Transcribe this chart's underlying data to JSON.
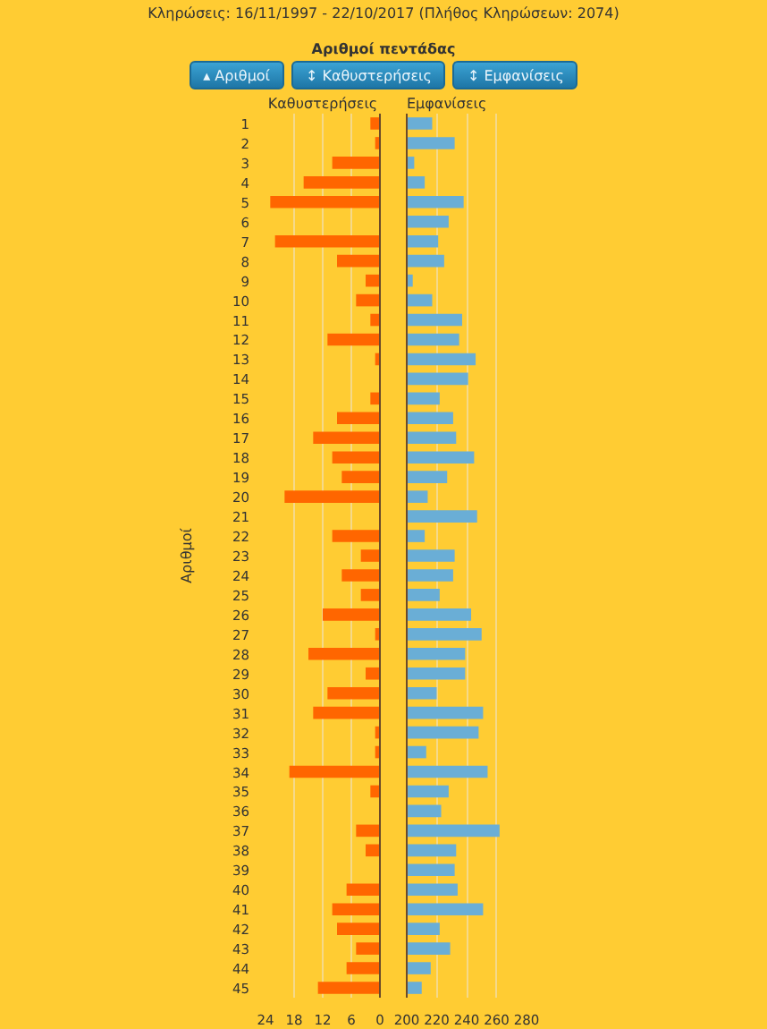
{
  "chart_data": [
    {
      "type": "other",
      "title": "Αριθμοί πεντάδας",
      "annotations": [
        "Κληρώσεις: 16/11/1997 - 22/10/2017 (Πλήθος Κληρώσεων: 2074)",
        "▴ Αριθμοί",
        "↕ Καθυστερήσεις",
        "↕ Εμφανίσεις"
      ]
    },
    {
      "type": "bar",
      "orientation": "horizontal",
      "title": "Καθυστερήσεις",
      "ylabel": "Αριθμοί",
      "categories": [
        "1",
        "2",
        "3",
        "4",
        "5",
        "6",
        "7",
        "8",
        "9",
        "10",
        "11",
        "12",
        "13",
        "14",
        "15",
        "16",
        "17",
        "18",
        "19",
        "20",
        "21",
        "22",
        "23",
        "24",
        "25",
        "26",
        "27",
        "28",
        "29",
        "30",
        "31",
        "32",
        "33",
        "34",
        "35",
        "36",
        "37",
        "38",
        "39",
        "40",
        "41",
        "42",
        "43",
        "44",
        "45"
      ],
      "series": [
        {
          "color": "#ff6600",
          "values": [
            2,
            1,
            10,
            16,
            23,
            0,
            22,
            9,
            3,
            5,
            2,
            11,
            1,
            0,
            2,
            9,
            14,
            10,
            8,
            20,
            0,
            10,
            4,
            8,
            4,
            12,
            1,
            15,
            3,
            11,
            14,
            1,
            1,
            19,
            2,
            0,
            5,
            3,
            0,
            7,
            10,
            9,
            5,
            7,
            13
          ]
        }
      ],
      "xlim": [
        24,
        0
      ],
      "xticks": [
        24,
        18,
        12,
        6,
        0
      ],
      "grid": "x"
    },
    {
      "type": "bar",
      "orientation": "horizontal",
      "title": "Εμφανίσεις",
      "categories": [
        "1",
        "2",
        "3",
        "4",
        "5",
        "6",
        "7",
        "8",
        "9",
        "10",
        "11",
        "12",
        "13",
        "14",
        "15",
        "16",
        "17",
        "18",
        "19",
        "20",
        "21",
        "22",
        "23",
        "24",
        "25",
        "26",
        "27",
        "28",
        "29",
        "30",
        "31",
        "32",
        "33",
        "34",
        "35",
        "36",
        "37",
        "38",
        "39",
        "40",
        "41",
        "42",
        "43",
        "44",
        "45"
      ],
      "series": [
        {
          "color": "#6aaed6",
          "values": [
            217,
            232,
            205,
            212,
            238,
            228,
            221,
            225,
            204,
            217,
            237,
            235,
            246,
            241,
            222,
            231,
            233,
            245,
            227,
            214,
            247,
            212,
            232,
            231,
            222,
            243,
            250,
            239,
            239,
            220,
            251,
            248,
            213,
            254,
            228,
            223,
            262,
            233,
            232,
            234,
            251,
            222,
            229,
            216,
            210
          ]
        }
      ],
      "xlim": [
        200,
        280
      ],
      "xticks": [
        200,
        220,
        240,
        260,
        280
      ],
      "grid": "x",
      "tick_labels": "x"
    }
  ]
}
